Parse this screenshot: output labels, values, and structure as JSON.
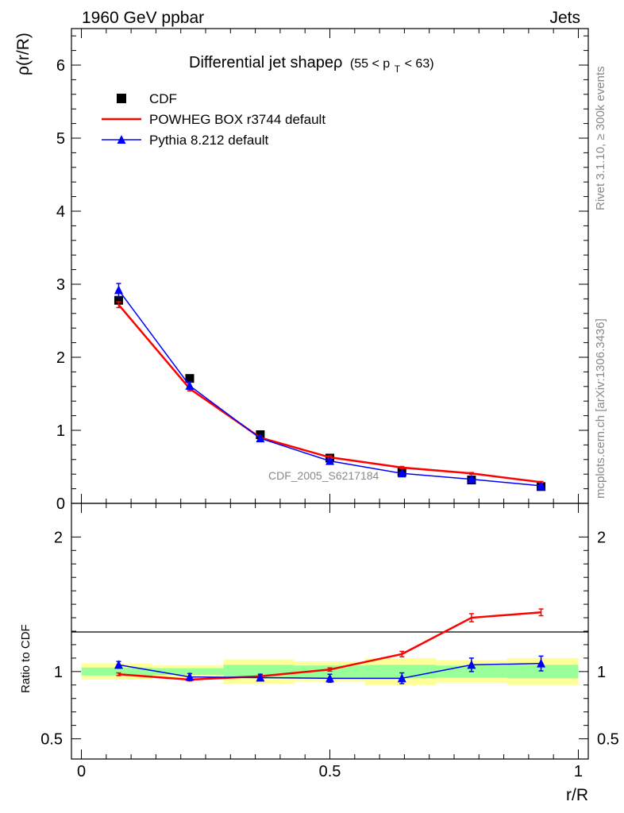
{
  "header": {
    "left": "1960 GeV ppbar",
    "right": "Jets"
  },
  "side_labels": {
    "rivet": "Rivet 3.1.10, ≥ 300k events",
    "mcplots": "mcplots.cern.ch [arXiv:1306.3436]"
  },
  "watermark": "CDF_2005_S6217184",
  "title": {
    "main": "Differential jet shapeρ",
    "cut": "(55 < p",
    "cut_sub": "T",
    "cut_end": " < 63)"
  },
  "legend": [
    {
      "label": "CDF",
      "color": "#000000",
      "marker": "square"
    },
    {
      "label": "POWHEG BOX r3744 default",
      "color": "#ff0000",
      "marker": "line"
    },
    {
      "label": "Pythia 8.212 default",
      "color": "#0000ff",
      "marker": "triangle"
    }
  ],
  "chart_data": [
    {
      "type": "line",
      "panel": "main",
      "ylabel": "ρ(r/R)",
      "xlim": [
        -0.02,
        1.02
      ],
      "ylim": [
        0,
        6.5
      ],
      "yticks": [
        0,
        1,
        2,
        3,
        4,
        5,
        6
      ],
      "ytick_labels": [
        "0",
        "1",
        "2",
        "3",
        "4",
        "5",
        "6"
      ],
      "x": [
        0.075,
        0.218,
        0.36,
        0.5,
        0.645,
        0.785,
        0.925
      ],
      "series": [
        {
          "name": "CDF",
          "color": "#000000",
          "marker": "square",
          "values": [
            2.78,
            1.71,
            0.94,
            0.62,
            0.43,
            0.32,
            0.23
          ]
        },
        {
          "name": "POWHEG BOX r3744 default",
          "color": "#ff0000",
          "marker": "line",
          "values": [
            2.72,
            1.57,
            0.9,
            0.63,
            0.49,
            0.41,
            0.29
          ],
          "errors": [
            0.04,
            0.03,
            0.02,
            0.02,
            0.015,
            0.012,
            0.01
          ]
        },
        {
          "name": "Pythia 8.212 default",
          "color": "#0000ff",
          "marker": "triangle",
          "values": [
            2.92,
            1.61,
            0.89,
            0.58,
            0.41,
            0.33,
            0.24
          ],
          "errors": [
            0.09,
            0.05,
            0.03,
            0.02,
            0.015,
            0.013,
            0.012
          ]
        }
      ]
    },
    {
      "type": "line",
      "panel": "ratio",
      "ylabel": "Ratio to CDF",
      "xlabel": "r/R",
      "xlim": [
        -0.02,
        1.02
      ],
      "ylim": [
        0.35,
        2.25
      ],
      "yticks": [
        0.5,
        1,
        2
      ],
      "ytick_labels": [
        "0.5",
        "1",
        "2"
      ],
      "xticks": [
        0,
        0.5,
        1
      ],
      "xtick_labels": [
        "0",
        "0.5",
        "1"
      ],
      "bin_edges": [
        0.0,
        0.143,
        0.286,
        0.429,
        0.571,
        0.714,
        0.857,
        1.0
      ],
      "band_green_halfwidth": [
        0.03,
        0.025,
        0.05,
        0.045,
        0.05,
        0.045,
        0.05
      ],
      "band_yellow_halfwidth": [
        0.06,
        0.045,
        0.09,
        0.075,
        0.1,
        0.085,
        0.1
      ],
      "x": [
        0.075,
        0.218,
        0.36,
        0.5,
        0.645,
        0.785,
        0.925
      ],
      "series": [
        {
          "name": "POWHEG BOX r3744 default",
          "color": "#ff0000",
          "marker": "line",
          "values": [
            0.98,
            0.94,
            0.965,
            1.015,
            1.13,
            1.4,
            1.44
          ],
          "errors": [
            0.01,
            0.01,
            0.01,
            0.012,
            0.02,
            0.03,
            0.025
          ]
        },
        {
          "name": "Pythia 8.212 default",
          "color": "#0000ff",
          "marker": "triangle",
          "values": [
            1.05,
            0.96,
            0.955,
            0.95,
            0.95,
            1.05,
            1.06
          ],
          "errors": [
            0.025,
            0.025,
            0.025,
            0.03,
            0.04,
            0.05,
            0.055
          ]
        }
      ]
    }
  ]
}
